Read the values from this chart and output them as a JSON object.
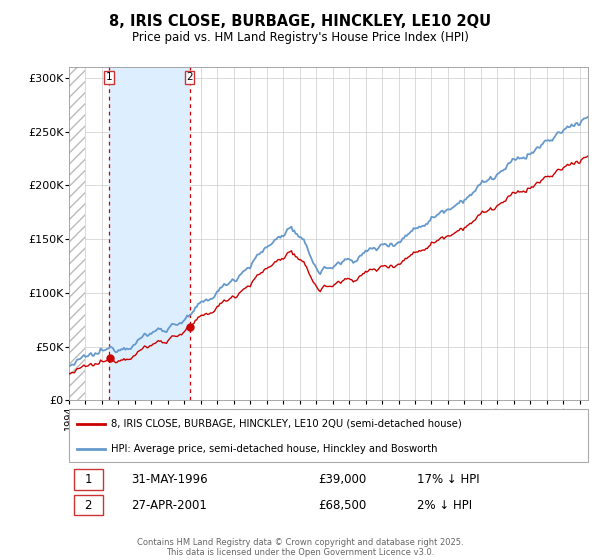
{
  "title": "8, IRIS CLOSE, BURBAGE, HINCKLEY, LE10 2QU",
  "subtitle": "Price paid vs. HM Land Registry's House Price Index (HPI)",
  "hpi_label": "HPI: Average price, semi-detached house, Hinckley and Bosworth",
  "property_label": "8, IRIS CLOSE, BURBAGE, HINCKLEY, LE10 2QU (semi-detached house)",
  "sale1_date": "31-MAY-1996",
  "sale1_price": "£39,000",
  "sale1_hpi": "17% ↓ HPI",
  "sale1_year": 1996.42,
  "sale1_value": 39000,
  "sale2_date": "27-APR-2001",
  "sale2_price": "£68,500",
  "sale2_hpi": "2% ↓ HPI",
  "sale2_year": 2001.32,
  "sale2_value": 68500,
  "ylim": [
    0,
    310000
  ],
  "xlim_start": 1994.0,
  "xlim_end": 2025.5,
  "hatch_end": 1995.0,
  "shade_start": 1996.42,
  "shade_end": 2001.32,
  "ylabel_ticks": [
    0,
    50000,
    100000,
    150000,
    200000,
    250000,
    300000
  ],
  "ylabel_labels": [
    "£0",
    "£50K",
    "£100K",
    "£150K",
    "£200K",
    "£250K",
    "£300K"
  ],
  "red_color": "#cc0000",
  "blue_color": "#6699cc",
  "shade_color": "#ddeeff",
  "background_color": "#ffffff",
  "grid_color": "#cccccc",
  "footer": "Contains HM Land Registry data © Crown copyright and database right 2025.\nThis data is licensed under the Open Government Licence v3.0."
}
